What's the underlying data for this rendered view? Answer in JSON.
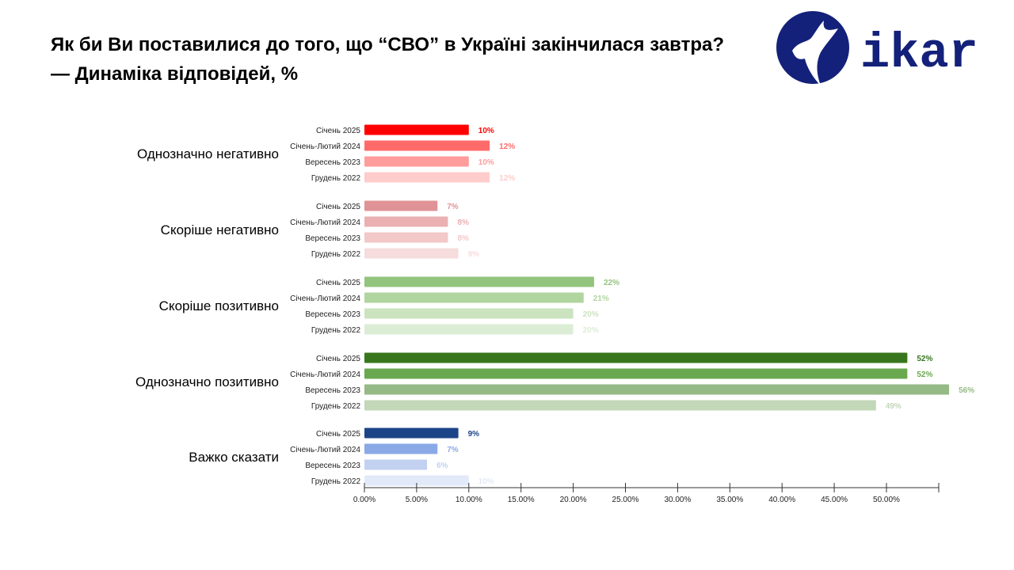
{
  "header": {
    "title": "Як би Ви поставилися до того, що “СВО” в Україні закінчилася завтра? — Динаміка відповідей, %"
  },
  "logo": {
    "text": "ikar",
    "color": "#14217a"
  },
  "chart_data": {
    "type": "bar",
    "orientation": "horizontal",
    "title": "",
    "xlabel": "",
    "ylabel": "",
    "xlim": [
      0,
      55
    ],
    "x_ticks": [
      "0.00%",
      "5.00%",
      "10.00%",
      "15.00%",
      "20.00%",
      "25.00%",
      "30.00%",
      "35.00%",
      "40.00%",
      "45.00%",
      "50.00%"
    ],
    "grid": false,
    "groups": [
      {
        "category": "Однозначно негативно",
        "rows": [
          {
            "period": "Січень 2025",
            "value": 10,
            "label": "10%",
            "color": "#ff0000"
          },
          {
            "period": "Січень-Лютий 2024",
            "value": 12,
            "label": "12%",
            "color": "#ff6b6b"
          },
          {
            "period": "Вересень 2023",
            "value": 10,
            "label": "10%",
            "color": "#ff9c9c"
          },
          {
            "period": "Грудень 2022",
            "value": 12,
            "label": "12%",
            "color": "#ffcccc"
          }
        ]
      },
      {
        "category": "Скоріше негативно",
        "rows": [
          {
            "period": "Січень 2025",
            "value": 7,
            "label": "7%",
            "color": "#e09396"
          },
          {
            "period": "Січень-Лютий 2024",
            "value": 8,
            "label": "8%",
            "color": "#eab0b2"
          },
          {
            "period": "Вересень 2023",
            "value": 8,
            "label": "8%",
            "color": "#f2c8c9"
          },
          {
            "period": "Грудень 2022",
            "value": 9,
            "label": "9%",
            "color": "#f7dcdd"
          }
        ]
      },
      {
        "category": "Скоріше позитивно",
        "rows": [
          {
            "period": "Січень 2025",
            "value": 22,
            "label": "22%",
            "color": "#93c47d"
          },
          {
            "period": "Січень-Лютий 2024",
            "value": 21,
            "label": "21%",
            "color": "#b0d59f"
          },
          {
            "period": "Вересень 2023",
            "value": 20,
            "label": "20%",
            "color": "#cbe4bf"
          },
          {
            "period": "Грудень 2022",
            "value": 20,
            "label": "20%",
            "color": "#dcedd5"
          }
        ]
      },
      {
        "category": "Однозначно позитивно",
        "rows": [
          {
            "period": "Січень 2025",
            "value": 52,
            "label": "52%",
            "color": "#38761d"
          },
          {
            "period": "Січень-Лютий 2024",
            "value": 52,
            "label": "52%",
            "color": "#6aa84f"
          },
          {
            "period": "Вересень 2023",
            "value": 56,
            "label": "56%",
            "color": "#96ba86"
          },
          {
            "period": "Грудень 2022",
            "value": 49,
            "label": "49%",
            "color": "#c3d7b9"
          }
        ]
      },
      {
        "category": "Важко сказати",
        "rows": [
          {
            "period": "Січень 2025",
            "value": 9,
            "label": "9%",
            "color": "#1c4587"
          },
          {
            "period": "Січень-Лютий 2024",
            "value": 7,
            "label": "7%",
            "color": "#8aa9e6"
          },
          {
            "period": "Вересень 2023",
            "value": 6,
            "label": "6%",
            "color": "#c2d1f0"
          },
          {
            "period": "Грудень 2022",
            "value": 10,
            "label": "10%",
            "color": "#e2e9f8"
          }
        ]
      }
    ]
  }
}
